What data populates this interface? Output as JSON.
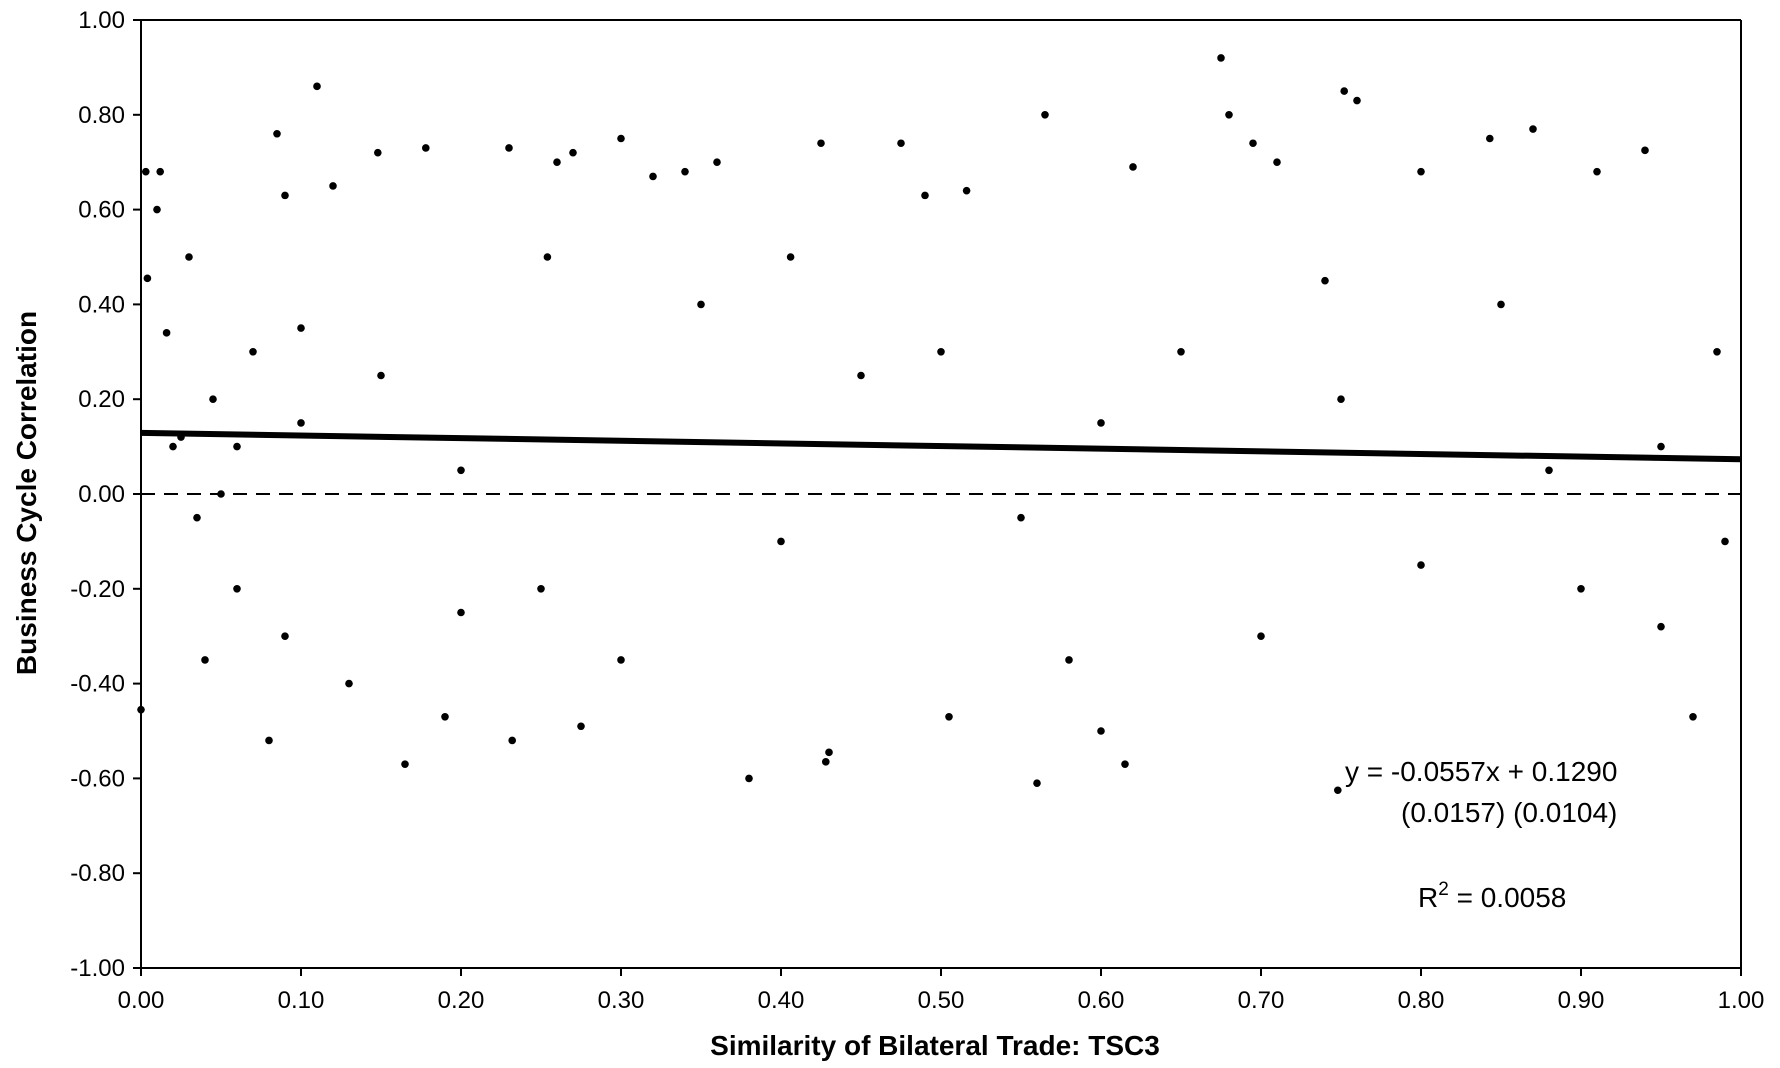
{
  "chart_data": {
    "type": "scatter",
    "xlabel": "Similarity of Bilateral Trade:  TSC3",
    "ylabel": "Business Cycle Correlation",
    "xlim": [
      0,
      1
    ],
    "ylim": [
      -1,
      1
    ],
    "x_ticks": [
      "0.00",
      "0.10",
      "0.20",
      "0.30",
      "0.40",
      "0.50",
      "0.60",
      "0.70",
      "0.80",
      "0.90",
      "1.00"
    ],
    "y_ticks": [
      "1.00",
      "0.80",
      "0.60",
      "0.40",
      "0.20",
      "0.00",
      "-0.20",
      "-0.40",
      "-0.60",
      "-0.80",
      "-1.00"
    ],
    "grid": false,
    "zero_line": {
      "y": 0,
      "style": "dashed"
    },
    "trendline": {
      "slope": -0.0557,
      "intercept": 0.129
    },
    "annotations": {
      "equation": "y = -0.0557x + 0.1290",
      "std_errors": "(0.0157)   (0.0104)",
      "r2_prefix": "R",
      "r2_sup": "2",
      "r2_value": " = 0.0058"
    },
    "series": [
      {
        "values": [
          [
            0.0,
            -0.455
          ],
          [
            0.003,
            0.68
          ],
          [
            0.012,
            0.68
          ],
          [
            0.004,
            0.455
          ],
          [
            0.01,
            0.6
          ],
          [
            0.016,
            0.34
          ],
          [
            0.02,
            0.1
          ],
          [
            0.025,
            0.12
          ],
          [
            0.035,
            -0.05
          ],
          [
            0.045,
            0.2
          ],
          [
            0.05,
            0.0
          ],
          [
            0.06,
            -0.2
          ],
          [
            0.07,
            0.3
          ],
          [
            0.08,
            -0.52
          ],
          [
            0.085,
            0.76
          ],
          [
            0.09,
            0.63
          ],
          [
            0.1,
            0.15
          ],
          [
            0.11,
            0.86
          ],
          [
            0.12,
            0.65
          ],
          [
            0.13,
            -0.4
          ],
          [
            0.148,
            0.72
          ],
          [
            0.165,
            -0.57
          ],
          [
            0.178,
            0.73
          ],
          [
            0.19,
            -0.47
          ],
          [
            0.23,
            0.73
          ],
          [
            0.232,
            -0.52
          ],
          [
            0.254,
            0.5
          ],
          [
            0.26,
            0.7
          ],
          [
            0.27,
            0.72
          ],
          [
            0.275,
            -0.49
          ],
          [
            0.3,
            0.75
          ],
          [
            0.32,
            0.67
          ],
          [
            0.34,
            0.68
          ],
          [
            0.36,
            0.7
          ],
          [
            0.38,
            -0.6
          ],
          [
            0.406,
            0.5
          ],
          [
            0.428,
            -0.565
          ],
          [
            0.43,
            -0.545
          ],
          [
            0.425,
            0.74
          ],
          [
            0.475,
            0.74
          ],
          [
            0.49,
            0.63
          ],
          [
            0.505,
            -0.47
          ],
          [
            0.516,
            0.64
          ],
          [
            0.56,
            -0.61
          ],
          [
            0.565,
            0.8
          ],
          [
            0.58,
            -0.35
          ],
          [
            0.6,
            -0.5
          ],
          [
            0.615,
            -0.57
          ],
          [
            0.62,
            0.69
          ],
          [
            0.675,
            0.92
          ],
          [
            0.68,
            0.8
          ],
          [
            0.695,
            0.74
          ],
          [
            0.71,
            0.7
          ],
          [
            0.74,
            0.45
          ],
          [
            0.748,
            -0.625
          ],
          [
            0.752,
            0.85
          ],
          [
            0.76,
            0.83
          ],
          [
            0.8,
            0.68
          ],
          [
            0.843,
            0.75
          ],
          [
            0.87,
            0.77
          ],
          [
            0.91,
            0.68
          ],
          [
            0.94,
            0.725
          ],
          [
            0.95,
            -0.28
          ],
          [
            0.97,
            -0.47
          ],
          [
            0.985,
            0.3
          ],
          [
            0.99,
            -0.1
          ],
          [
            0.03,
            0.5
          ],
          [
            0.04,
            -0.35
          ],
          [
            0.06,
            0.1
          ],
          [
            0.09,
            -0.3
          ],
          [
            0.15,
            0.25
          ],
          [
            0.2,
            0.05
          ],
          [
            0.25,
            -0.2
          ],
          [
            0.35,
            0.4
          ],
          [
            0.4,
            -0.1
          ],
          [
            0.45,
            0.25
          ],
          [
            0.55,
            -0.05
          ],
          [
            0.65,
            0.3
          ],
          [
            0.7,
            -0.3
          ],
          [
            0.75,
            0.2
          ],
          [
            0.8,
            -0.15
          ],
          [
            0.85,
            0.4
          ],
          [
            0.9,
            -0.2
          ],
          [
            0.95,
            0.1
          ],
          [
            0.5,
            0.3
          ],
          [
            0.3,
            -0.35
          ],
          [
            0.6,
            0.15
          ],
          [
            0.2,
            -0.25
          ],
          [
            0.1,
            0.35
          ],
          [
            0.88,
            0.05
          ]
        ]
      }
    ]
  }
}
